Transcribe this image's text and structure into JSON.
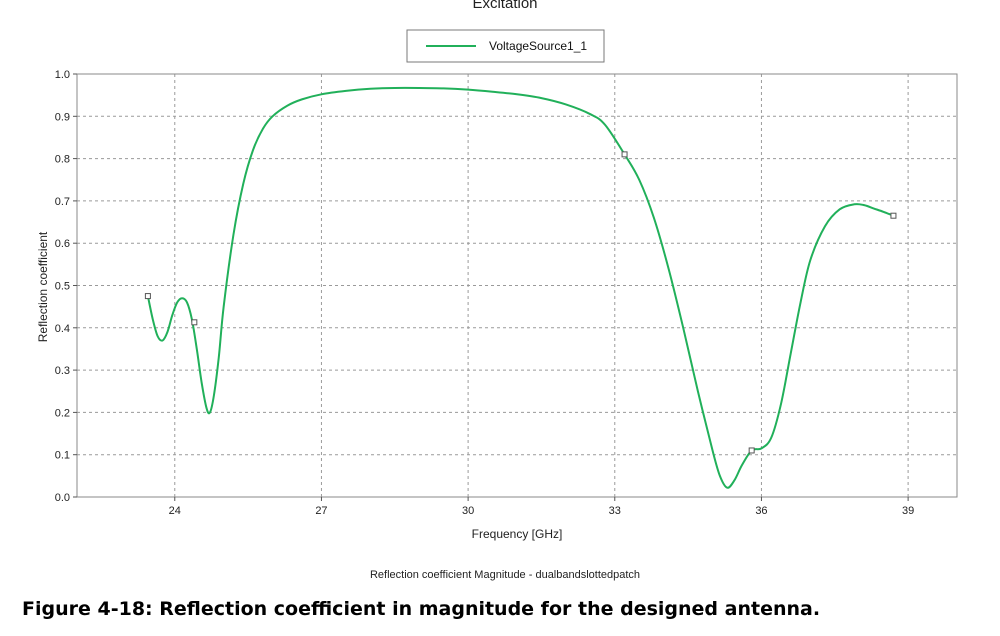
{
  "chart_data": {
    "type": "line",
    "title": "Excitation",
    "xlabel": "Frequency [GHz]",
    "ylabel": "Reflection coefficient",
    "xlim": [
      22.0,
      40.0
    ],
    "ylim": [
      0.0,
      1.0
    ],
    "xticks": [
      24,
      27,
      30,
      33,
      36,
      39
    ],
    "yticks": [
      0.0,
      0.1,
      0.2,
      0.3,
      0.4,
      0.5,
      0.6,
      0.7,
      0.8,
      0.9,
      1.0
    ],
    "xtick_labels": [
      "24",
      "27",
      "30",
      "33",
      "36",
      "39"
    ],
    "ytick_labels": [
      "0.0",
      "0.1",
      "0.2",
      "0.3",
      "0.4",
      "0.5",
      "0.6",
      "0.7",
      "0.8",
      "0.9",
      "1.0"
    ],
    "grid": true,
    "legend": {
      "placement": "top-center"
    },
    "series": [
      {
        "name": "VoltageSource1_1",
        "color": "#21b05a",
        "x": [
          23.45,
          23.55,
          23.65,
          23.75,
          23.85,
          23.95,
          24.05,
          24.15,
          24.25,
          24.35,
          24.45,
          24.55,
          24.65,
          24.72,
          24.8,
          24.9,
          25.0,
          25.2,
          25.4,
          25.6,
          25.8,
          26.0,
          26.3,
          26.6,
          27.0,
          27.5,
          28.0,
          28.5,
          29.0,
          29.5,
          30.0,
          30.5,
          31.0,
          31.5,
          32.0,
          32.5,
          32.8,
          33.2,
          33.5,
          33.8,
          34.1,
          34.4,
          34.7,
          35.0,
          35.15,
          35.3,
          35.45,
          35.6,
          35.8,
          36.0,
          36.2,
          36.4,
          36.6,
          36.8,
          37.0,
          37.3,
          37.6,
          37.9,
          38.1,
          38.3,
          38.5,
          38.7
        ],
        "y": [
          0.475,
          0.42,
          0.38,
          0.37,
          0.39,
          0.43,
          0.46,
          0.47,
          0.46,
          0.42,
          0.35,
          0.27,
          0.21,
          0.2,
          0.24,
          0.33,
          0.45,
          0.62,
          0.74,
          0.82,
          0.87,
          0.9,
          0.925,
          0.94,
          0.952,
          0.96,
          0.965,
          0.967,
          0.967,
          0.966,
          0.963,
          0.958,
          0.952,
          0.943,
          0.928,
          0.905,
          0.88,
          0.81,
          0.75,
          0.66,
          0.54,
          0.4,
          0.25,
          0.11,
          0.05,
          0.022,
          0.04,
          0.075,
          0.11,
          0.115,
          0.14,
          0.22,
          0.34,
          0.46,
          0.56,
          0.64,
          0.68,
          0.692,
          0.69,
          0.682,
          0.674,
          0.665
        ]
      }
    ],
    "markers": [
      {
        "x": 23.45,
        "y": 0.475
      },
      {
        "x": 24.4,
        "y": 0.413
      },
      {
        "x": 33.2,
        "y": 0.81
      },
      {
        "x": 35.8,
        "y": 0.11
      },
      {
        "x": 38.7,
        "y": 0.665
      }
    ],
    "subcaption": "Reflection coefficient Magnitude - dualbandslottedpatch"
  },
  "figure_caption": "Figure 4-18: Reflection coefficient in magnitude for the designed antenna."
}
